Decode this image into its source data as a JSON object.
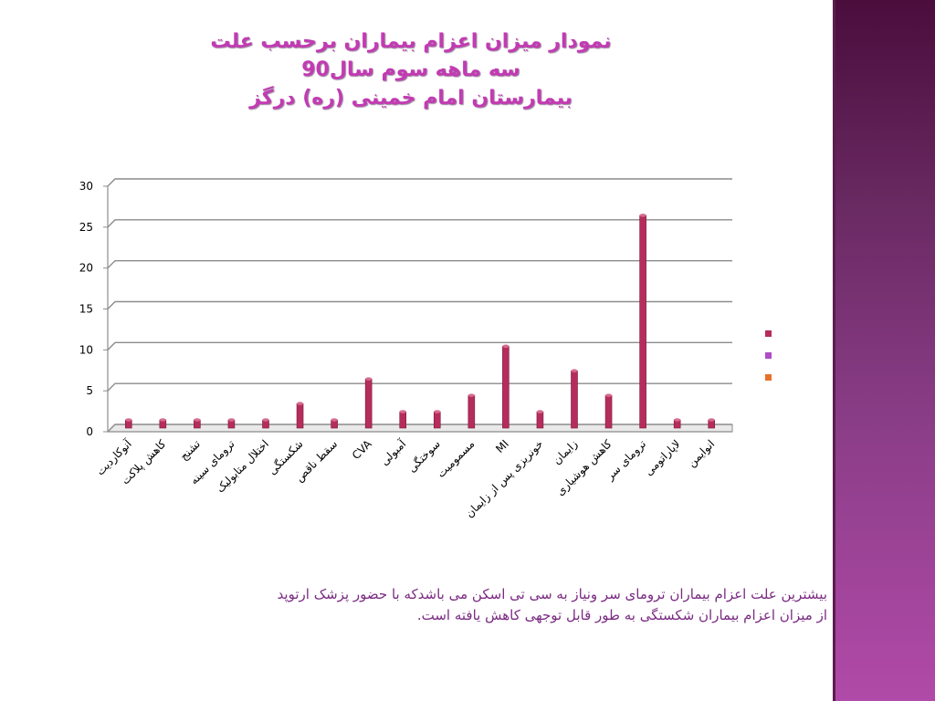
{
  "slide": {
    "title_lines": [
      "نمودار میزان اعزام بیماران برحسب علت",
      "سه ماهه سوم سال90",
      "بیمارستان امام خمینی (ره) درگز"
    ],
    "caption_lines": [
      "بیشترین علت اعزام بیماران ترومای سر ونیاز به سی تی اسکن می باشدکه با حضور پزشک ارتوپد",
      "از میزان اعزام بیماران شکستگی به طور قابل توجهی کاهش یافته است."
    ]
  },
  "colors": {
    "bar": "#b52d5c",
    "legend": [
      "#b52d5c",
      "#b04cc8",
      "#e8712a"
    ],
    "title": "#c23bb3",
    "caption": "#7a2a82"
  },
  "chart_data": {
    "type": "bar",
    "categories": [
      "آنوکاردیت",
      "کاهش پلاکت",
      "تشنج",
      "ترومای سینه",
      "اختلال متابولیک",
      "شکستگی",
      "سقط ناقص",
      "CVA",
      "آمبولی",
      "سوختگی",
      "مسمومیت",
      "MI",
      "خونریزی پس از زایمان",
      "زایمان",
      "کاهش هوشیاری",
      "ترومای سر",
      "لاپاراتومی",
      "انوایمن"
    ],
    "values": [
      1,
      1,
      1,
      1,
      1,
      3,
      1,
      6,
      2,
      2,
      4,
      10,
      2,
      7,
      4,
      26,
      1,
      1
    ],
    "ylim": [
      0,
      30
    ],
    "yticks": [
      0,
      5,
      10,
      15,
      20,
      25,
      30
    ],
    "grid": true,
    "legend_position": "right",
    "legend_entries": 3
  }
}
